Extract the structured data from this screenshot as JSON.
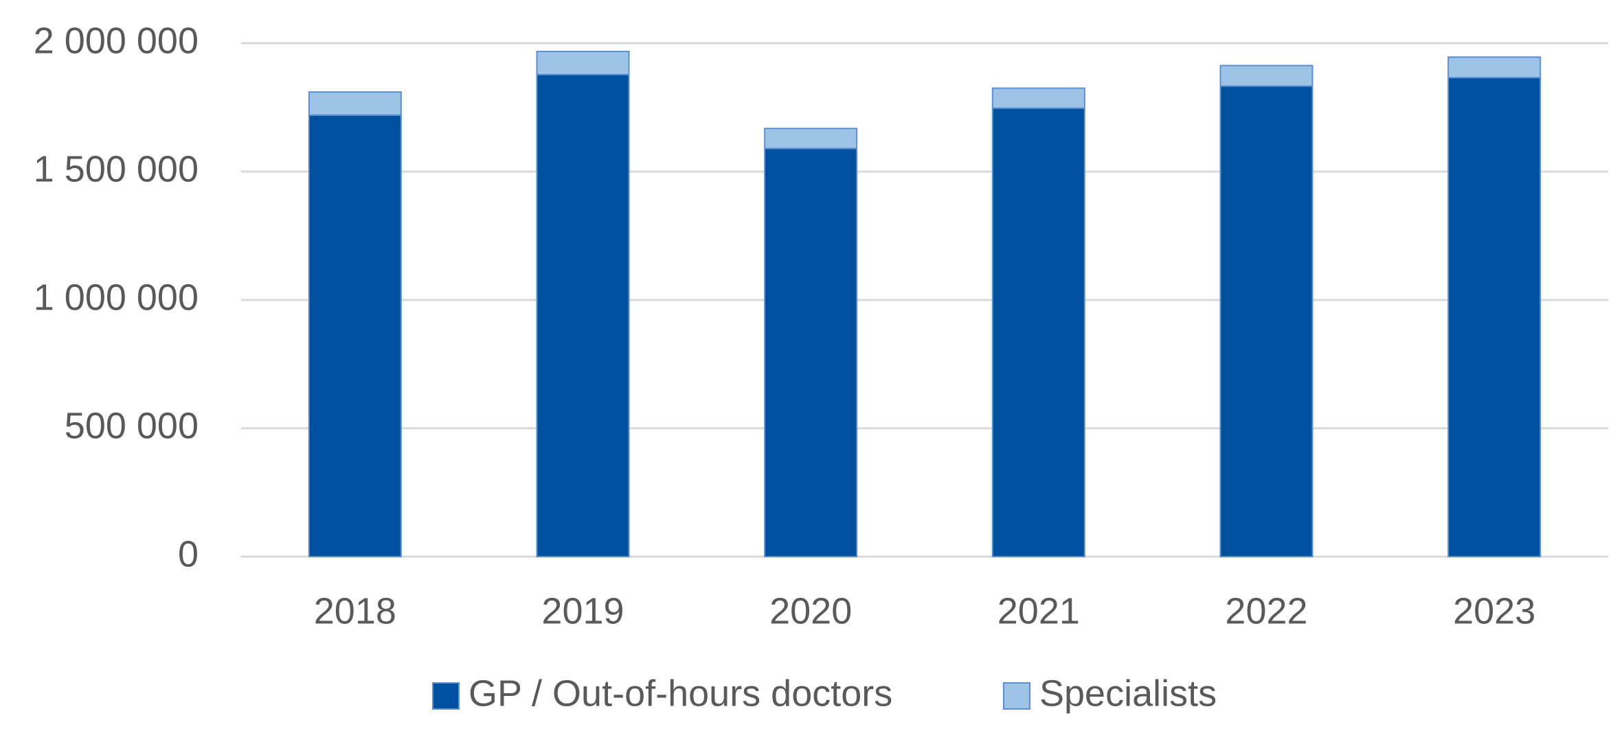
{
  "chart_data": {
    "type": "stacked-bar",
    "categories": [
      "2018",
      "2019",
      "2020",
      "2021",
      "2022",
      "2023"
    ],
    "series": [
      {
        "name": "GP / Out-of-hours doctors",
        "color": "#0050a0",
        "values": [
          1720000,
          1878000,
          1590000,
          1747000,
          1833000,
          1866000
        ]
      },
      {
        "name": "Specialists",
        "color": "#9dc3e6",
        "values": [
          90000,
          90000,
          78000,
          78000,
          80000,
          80000
        ]
      }
    ],
    "ylim": [
      0,
      2000000
    ],
    "yticks": [
      0,
      {
        "value": 500000,
        "label": "500 000"
      },
      {
        "value": 1000000,
        "label": "1 000 000"
      },
      {
        "value": 1500000,
        "label": "1 500 000"
      },
      {
        "value": 2000000,
        "label": "2 000 000"
      }
    ],
    "grid": true
  }
}
